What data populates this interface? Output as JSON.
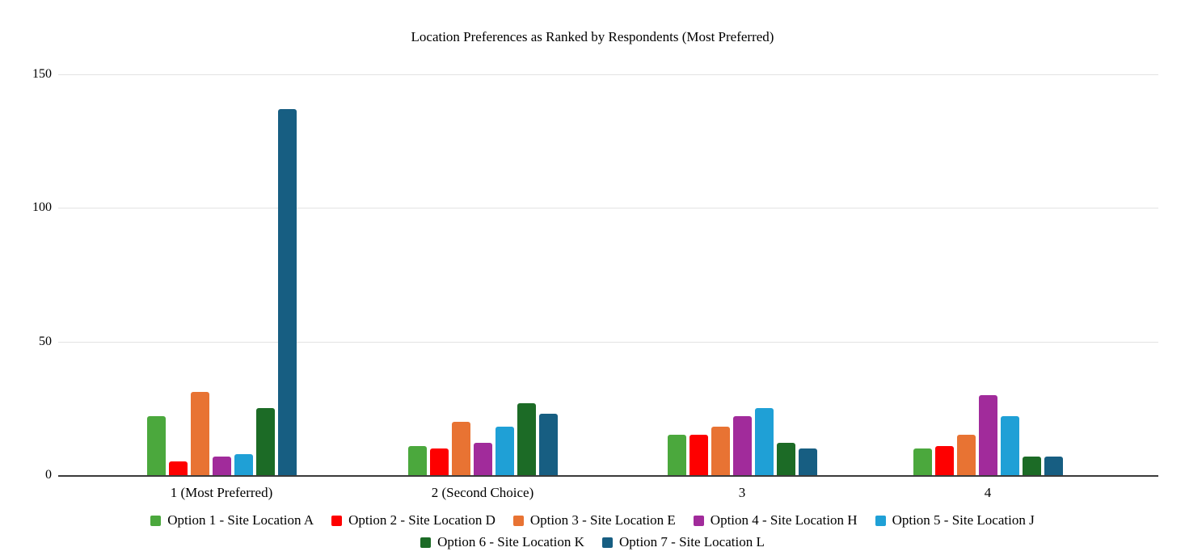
{
  "chart_data": {
    "type": "bar",
    "title": "Location Preferences as Ranked by Respondents (Most Preferred)",
    "categories": [
      "1 (Most Preferred)",
      "2 (Second Choice)",
      "3",
      "4"
    ],
    "series": [
      {
        "name": "Option 1 - Site Location A",
        "color": "#4BA83D",
        "values": [
          22,
          11,
          15,
          10
        ]
      },
      {
        "name": "Option 2 - Site Location D",
        "color": "#FE0000",
        "values": [
          5,
          10,
          15,
          11
        ]
      },
      {
        "name": "Option 3 - Site Location E",
        "color": "#E87333",
        "values": [
          31,
          20,
          18,
          15
        ]
      },
      {
        "name": "Option 4 - Site Location H",
        "color": "#A12B9B",
        "values": [
          7,
          12,
          22,
          30
        ]
      },
      {
        "name": "Option 5 - Site Location J",
        "color": "#1FA0D6",
        "values": [
          8,
          18,
          25,
          22
        ]
      },
      {
        "name": "Option 6 - Site Location K",
        "color": "#1C6B26",
        "values": [
          25,
          27,
          12,
          7
        ]
      },
      {
        "name": "Option 7 - Site Location L",
        "color": "#175E82",
        "values": [
          137,
          23,
          10,
          7
        ]
      }
    ],
    "y_ticks": [
      0,
      50,
      100,
      150
    ],
    "ylim": [
      0,
      150
    ],
    "grid": true,
    "legend_position": "bottom",
    "legend_rows": [
      [
        0,
        1,
        2,
        3,
        4
      ],
      [
        5,
        6
      ]
    ],
    "colors": {
      "grid": "#e3e3e3",
      "axis": "#3b3b3b",
      "text": "#000000"
    }
  }
}
